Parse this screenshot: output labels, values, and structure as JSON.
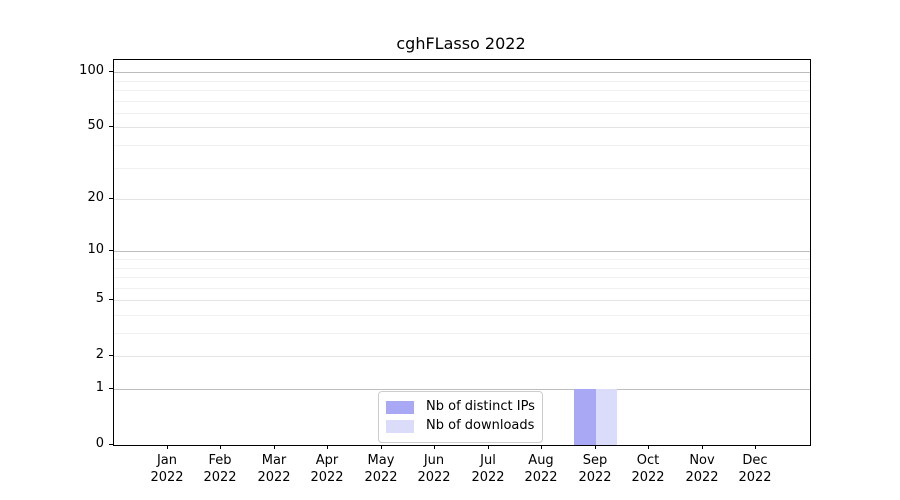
{
  "chart_data": {
    "type": "bar",
    "title": "cghFLasso 2022",
    "categories": [
      {
        "month": "Jan",
        "year": "2022"
      },
      {
        "month": "Feb",
        "year": "2022"
      },
      {
        "month": "Mar",
        "year": "2022"
      },
      {
        "month": "Apr",
        "year": "2022"
      },
      {
        "month": "May",
        "year": "2022"
      },
      {
        "month": "Jun",
        "year": "2022"
      },
      {
        "month": "Jul",
        "year": "2022"
      },
      {
        "month": "Aug",
        "year": "2022"
      },
      {
        "month": "Sep",
        "year": "2022"
      },
      {
        "month": "Oct",
        "year": "2022"
      },
      {
        "month": "Nov",
        "year": "2022"
      },
      {
        "month": "Dec",
        "year": "2022"
      }
    ],
    "series": [
      {
        "name": "Nb of distinct IPs",
        "color": "#a8a8f5",
        "values": [
          0,
          0,
          0,
          0,
          0,
          0,
          0,
          0,
          1,
          0,
          0,
          0
        ]
      },
      {
        "name": "Nb of downloads",
        "color": "#dbdbfa",
        "values": [
          0,
          0,
          0,
          0,
          0,
          0,
          0,
          0,
          1,
          0,
          0,
          0
        ]
      }
    ],
    "xlabel": "",
    "ylabel": "",
    "y_axis": {
      "scale": "log10(1+y)",
      "ylim": [
        0,
        117
      ],
      "ticks": [
        0,
        1,
        2,
        5,
        10,
        20,
        50,
        100
      ],
      "tick_labels": [
        "0",
        "1",
        "2",
        "5",
        "10",
        "20",
        "50",
        "100"
      ],
      "minor_ticks": [
        3,
        4,
        6,
        7,
        8,
        9,
        30,
        40,
        60,
        70,
        80,
        90
      ]
    },
    "grid": "horizontal-only",
    "legend_position": "bottom-center-inside",
    "colors": {
      "decade_grid": "#bdbdbd",
      "major_grid": "#e4e4e4",
      "minor_grid": "#f1f1f1",
      "axis": "#000000",
      "background": "#ffffff"
    }
  }
}
